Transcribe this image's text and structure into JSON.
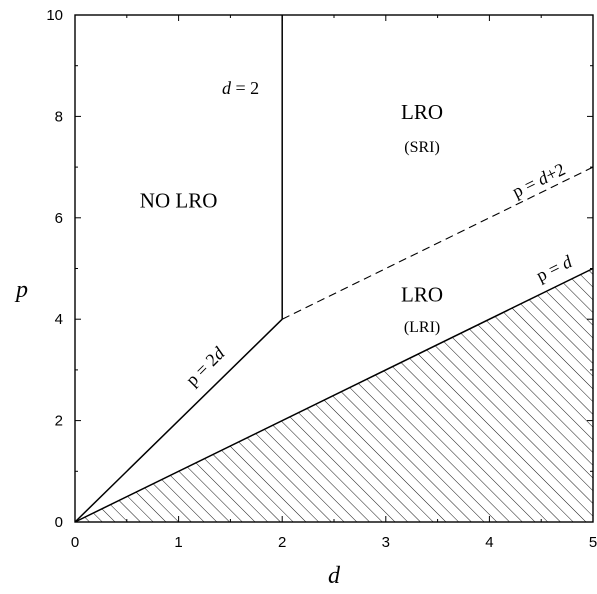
{
  "chart_data": {
    "type": "line",
    "xlabel": "d",
    "ylabel": "p",
    "xlim": [
      0,
      5
    ],
    "ylim": [
      0,
      10
    ],
    "xticks": [
      "0",
      "1",
      "2",
      "3",
      "4",
      "5"
    ],
    "yticks": [
      "0",
      "2",
      "4",
      "6",
      "8",
      "10"
    ],
    "grid": false,
    "series": [
      {
        "name": "p = 2d",
        "style": "solid",
        "points": [
          [
            0,
            0
          ],
          [
            2,
            4
          ]
        ]
      },
      {
        "name": "d = 2",
        "style": "solid",
        "points": [
          [
            2,
            4
          ],
          [
            2,
            10
          ]
        ]
      },
      {
        "name": "p = d+2",
        "style": "dashed",
        "points": [
          [
            2,
            4
          ],
          [
            5,
            7
          ]
        ]
      },
      {
        "name": "p = d",
        "style": "solid",
        "points": [
          [
            0,
            0
          ],
          [
            5,
            5
          ]
        ]
      }
    ],
    "shaded_region": {
      "pattern": "hatched",
      "bounded_by": "p = d",
      "side": "below"
    },
    "region_labels": [
      {
        "text": "NO LRO",
        "sub": ""
      },
      {
        "text": "LRO",
        "sub": "(SRI)"
      },
      {
        "text": "LRO",
        "sub": "(LRI)"
      }
    ],
    "line_labels": {
      "d2": {
        "pre": "d",
        "post": " = 2"
      },
      "p2d": {
        "pre": "p = 2",
        "post": "d"
      },
      "pd2": {
        "pre": "p = ",
        "var": "d",
        "post": "+2"
      },
      "pd": {
        "pre": "p = ",
        "post": "d"
      }
    }
  }
}
